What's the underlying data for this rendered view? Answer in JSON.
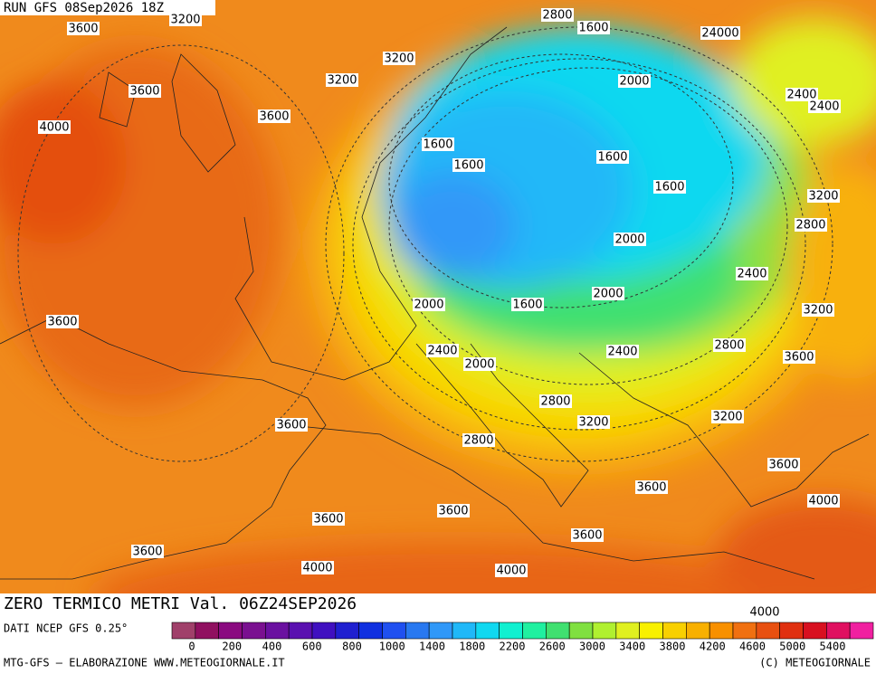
{
  "header": {
    "run": "RUN GFS 08Sep2026 18Z"
  },
  "map": {
    "contour_labels": [
      "3600",
      "3200",
      "2800",
      "1600",
      "24000",
      "3200",
      "3200",
      "3600",
      "2000",
      "2400",
      "2400",
      "3600",
      "4000",
      "1600",
      "1600",
      "1600",
      "1600",
      "3200",
      "2800",
      "2000",
      "2400",
      "2000",
      "1600",
      "2000",
      "3200",
      "3600",
      "2400",
      "2000",
      "2400",
      "2800",
      "3600",
      "2800",
      "3200",
      "3200",
      "3600",
      "2800",
      "3600",
      "3600",
      "4000",
      "3600",
      "3600",
      "3600",
      "3600",
      "4000",
      "4000",
      "4000"
    ]
  },
  "footer": {
    "title": "ZERO TERMICO METRI Val. 06Z24SEP2026",
    "source": "DATI NCEP GFS 0.25°",
    "credit": "MTG-GFS — ELABORAZIONE WWW.METEOGIORNALE.IT",
    "copyright": "(C) METEOGIORNALE"
  },
  "legend": {
    "ticks": [
      0,
      200,
      400,
      600,
      800,
      1000,
      1400,
      1800,
      2200,
      2600,
      3000,
      3400,
      3800,
      4200,
      4600,
      5000,
      5400
    ],
    "colors": [
      "#a0406a",
      "#901060",
      "#8a0a80",
      "#7a1090",
      "#6a10a0",
      "#5a10b0",
      "#4010c0",
      "#2020d0",
      "#1030e0",
      "#2050f0",
      "#2878f0",
      "#3098f8",
      "#20b8f8",
      "#10d8f0",
      "#10f0d0",
      "#20f0a0",
      "#40e070",
      "#80e040",
      "#b0f030",
      "#e0f020",
      "#f8f000",
      "#f8d000",
      "#f8b000",
      "#f89000",
      "#f07010",
      "#e85010",
      "#e03010",
      "#d81020",
      "#e01060",
      "#f020a0"
    ]
  }
}
